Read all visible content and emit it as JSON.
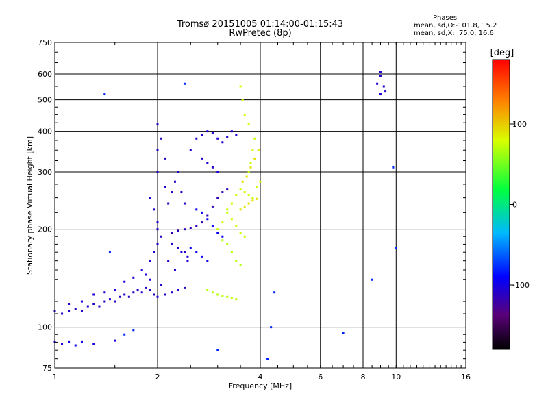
{
  "header": {
    "title_line1": "Tromsø 20151005 01:14:00-01:15:43",
    "title_line2": "RwPretec (8p)"
  },
  "info_panel": {
    "heading": "Phases",
    "line1": "mean, sd,O:-101.8, 15.2",
    "line2": "mean, sd,X:  75.0, 16.6"
  },
  "colorbar": {
    "label": "[deg]",
    "ticks": [
      {
        "value": 100,
        "label": "100"
      },
      {
        "value": 0,
        "label": "0"
      },
      {
        "value": -100,
        "label": "-100"
      }
    ],
    "range": [
      -180,
      180
    ]
  },
  "chart_data": {
    "type": "scatter",
    "title": "Tromsø 20151005 01:14:00-01:15:43",
    "subtitle": "RwPretec (8p)",
    "xlabel": "Frequency [MHz]",
    "ylabel": "Stationary phase Virtual Height [km]",
    "x_scale": "log",
    "y_scale": "log",
    "xlim": [
      1,
      16
    ],
    "ylim": [
      75,
      750
    ],
    "x_ticks": [
      1,
      2,
      4,
      6,
      8,
      10,
      16
    ],
    "x_tick_labels": [
      "1",
      "2",
      "4",
      "6",
      "8",
      "10",
      "16"
    ],
    "y_ticks": [
      75,
      100,
      200,
      300,
      400,
      500,
      600,
      750
    ],
    "y_tick_labels": [
      "75",
      "100",
      "200",
      "300",
      "400",
      "500",
      "600",
      "750"
    ],
    "grid": true,
    "color_variable": "phase [deg]",
    "series": [
      {
        "label_key": "o-low",
        "phase": -110,
        "points": [
          [
            1.0,
            112
          ],
          [
            1.05,
            110
          ],
          [
            1.1,
            112
          ],
          [
            1.15,
            114
          ],
          [
            1.2,
            112
          ],
          [
            1.25,
            116
          ],
          [
            1.3,
            118
          ],
          [
            1.35,
            116
          ],
          [
            1.4,
            120
          ],
          [
            1.45,
            122
          ],
          [
            1.5,
            120
          ],
          [
            1.55,
            124
          ],
          [
            1.6,
            126
          ],
          [
            1.65,
            124
          ],
          [
            1.7,
            128
          ],
          [
            1.75,
            130
          ],
          [
            1.8,
            128
          ],
          [
            1.85,
            132
          ],
          [
            1.9,
            130
          ],
          [
            1.95,
            126
          ],
          [
            2.0,
            124
          ],
          [
            2.1,
            126
          ],
          [
            2.2,
            128
          ],
          [
            2.3,
            130
          ],
          [
            2.4,
            132
          ]
        ]
      },
      {
        "label_key": "o-low-scatter",
        "phase": -105,
        "points": [
          [
            1.1,
            118
          ],
          [
            1.2,
            120
          ],
          [
            1.3,
            126
          ],
          [
            1.4,
            128
          ],
          [
            1.5,
            130
          ],
          [
            1.6,
            138
          ],
          [
            1.7,
            142
          ],
          [
            1.8,
            150
          ],
          [
            1.9,
            160
          ],
          [
            1.95,
            170
          ],
          [
            2.0,
            180
          ],
          [
            1.9,
            140
          ],
          [
            1.85,
            145
          ],
          [
            2.05,
            135
          ],
          [
            2.15,
            160
          ],
          [
            2.25,
            150
          ],
          [
            2.35,
            170
          ],
          [
            2.45,
            160
          ]
        ]
      },
      {
        "label_key": "o-78",
        "phase": -100,
        "points": [
          [
            1.0,
            90
          ],
          [
            1.05,
            89
          ],
          [
            1.1,
            90
          ],
          [
            1.15,
            88
          ],
          [
            1.2,
            90
          ],
          [
            1.3,
            89
          ],
          [
            1.5,
            91
          ]
        ]
      },
      {
        "label_key": "o-rise",
        "phase": -110,
        "points": [
          [
            1.9,
            250
          ],
          [
            1.95,
            230
          ],
          [
            2.0,
            210
          ],
          [
            2.0,
            200
          ],
          [
            2.05,
            190
          ],
          [
            2.0,
            300
          ],
          [
            2.0,
            350
          ],
          [
            2.0,
            420
          ],
          [
            2.05,
            380
          ],
          [
            2.1,
            330
          ],
          [
            2.1,
            270
          ],
          [
            2.15,
            240
          ],
          [
            2.2,
            260
          ],
          [
            2.25,
            280
          ],
          [
            2.3,
            300
          ],
          [
            2.35,
            260
          ],
          [
            2.4,
            240
          ],
          [
            2.2,
            180
          ],
          [
            2.3,
            175
          ],
          [
            2.4,
            170
          ],
          [
            2.45,
            165
          ]
        ]
      },
      {
        "label_key": "o-diag",
        "phase": -115,
        "points": [
          [
            2.2,
            195
          ],
          [
            2.3,
            198
          ],
          [
            2.4,
            200
          ],
          [
            2.5,
            202
          ],
          [
            2.6,
            205
          ],
          [
            2.7,
            210
          ],
          [
            2.8,
            220
          ],
          [
            2.9,
            235
          ],
          [
            3.0,
            250
          ],
          [
            3.1,
            260
          ],
          [
            3.2,
            265
          ]
        ]
      },
      {
        "label_key": "o-top",
        "phase": -105,
        "points": [
          [
            2.5,
            350
          ],
          [
            2.6,
            380
          ],
          [
            2.7,
            390
          ],
          [
            2.8,
            400
          ],
          [
            2.9,
            395
          ],
          [
            3.0,
            380
          ],
          [
            3.1,
            370
          ],
          [
            3.2,
            385
          ],
          [
            3.3,
            400
          ],
          [
            3.4,
            390
          ],
          [
            2.7,
            330
          ],
          [
            2.8,
            320
          ],
          [
            2.9,
            310
          ],
          [
            3.0,
            300
          ]
        ]
      },
      {
        "label_key": "o-mid",
        "phase": -95,
        "points": [
          [
            2.6,
            230
          ],
          [
            2.7,
            225
          ],
          [
            2.8,
            215
          ],
          [
            2.9,
            205
          ],
          [
            3.0,
            195
          ],
          [
            3.1,
            190
          ],
          [
            2.5,
            175
          ],
          [
            2.6,
            170
          ],
          [
            2.7,
            165
          ],
          [
            2.8,
            160
          ]
        ]
      },
      {
        "label_key": "x-layer",
        "phase": 75,
        "points": [
          [
            3.0,
            200
          ],
          [
            3.1,
            210
          ],
          [
            3.2,
            225
          ],
          [
            3.3,
            240
          ],
          [
            3.4,
            255
          ],
          [
            3.5,
            265
          ],
          [
            3.6,
            260
          ],
          [
            3.7,
            255
          ],
          [
            3.8,
            250
          ],
          [
            3.9,
            270
          ],
          [
            4.0,
            280
          ],
          [
            3.7,
            300
          ],
          [
            3.75,
            320
          ],
          [
            3.8,
            350
          ],
          [
            3.85,
            380
          ],
          [
            3.7,
            420
          ],
          [
            3.6,
            450
          ],
          [
            3.55,
            500
          ],
          [
            3.5,
            550
          ],
          [
            3.2,
            230
          ],
          [
            3.3,
            215
          ],
          [
            3.4,
            205
          ],
          [
            3.5,
            195
          ],
          [
            3.6,
            190
          ]
        ]
      },
      {
        "label_key": "x-low",
        "phase": 70,
        "points": [
          [
            2.8,
            130
          ],
          [
            2.9,
            128
          ],
          [
            3.0,
            126
          ],
          [
            3.1,
            125
          ],
          [
            3.2,
            124
          ],
          [
            3.3,
            123
          ],
          [
            3.4,
            122
          ],
          [
            3.1,
            185
          ],
          [
            3.2,
            180
          ],
          [
            3.3,
            170
          ],
          [
            3.4,
            160
          ],
          [
            3.5,
            155
          ]
        ]
      },
      {
        "label_key": "x-band",
        "phase": 90,
        "points": [
          [
            3.5,
            230
          ],
          [
            3.6,
            235
          ],
          [
            3.7,
            240
          ],
          [
            3.8,
            245
          ],
          [
            3.9,
            248
          ],
          [
            3.55,
            280
          ],
          [
            3.65,
            290
          ],
          [
            3.75,
            310
          ],
          [
            3.85,
            330
          ],
          [
            3.95,
            350
          ]
        ]
      },
      {
        "label_key": "high-f",
        "phase": -105,
        "points": [
          [
            9.0,
            610
          ],
          [
            9.0,
            590
          ],
          [
            8.8,
            560
          ],
          [
            9.2,
            550
          ],
          [
            9.0,
            520
          ],
          [
            9.3,
            530
          ]
        ]
      },
      {
        "label_key": "sparse",
        "phase": -80,
        "points": [
          [
            1.4,
            520
          ],
          [
            1.45,
            170
          ],
          [
            1.6,
            95
          ],
          [
            1.7,
            98
          ],
          [
            2.4,
            560
          ],
          [
            4.3,
            100
          ],
          [
            4.4,
            128
          ],
          [
            7.0,
            96
          ],
          [
            8.5,
            140
          ],
          [
            9.8,
            310
          ],
          [
            10.0,
            175
          ],
          [
            3.0,
            85
          ],
          [
            4.2,
            80
          ]
        ]
      }
    ]
  }
}
